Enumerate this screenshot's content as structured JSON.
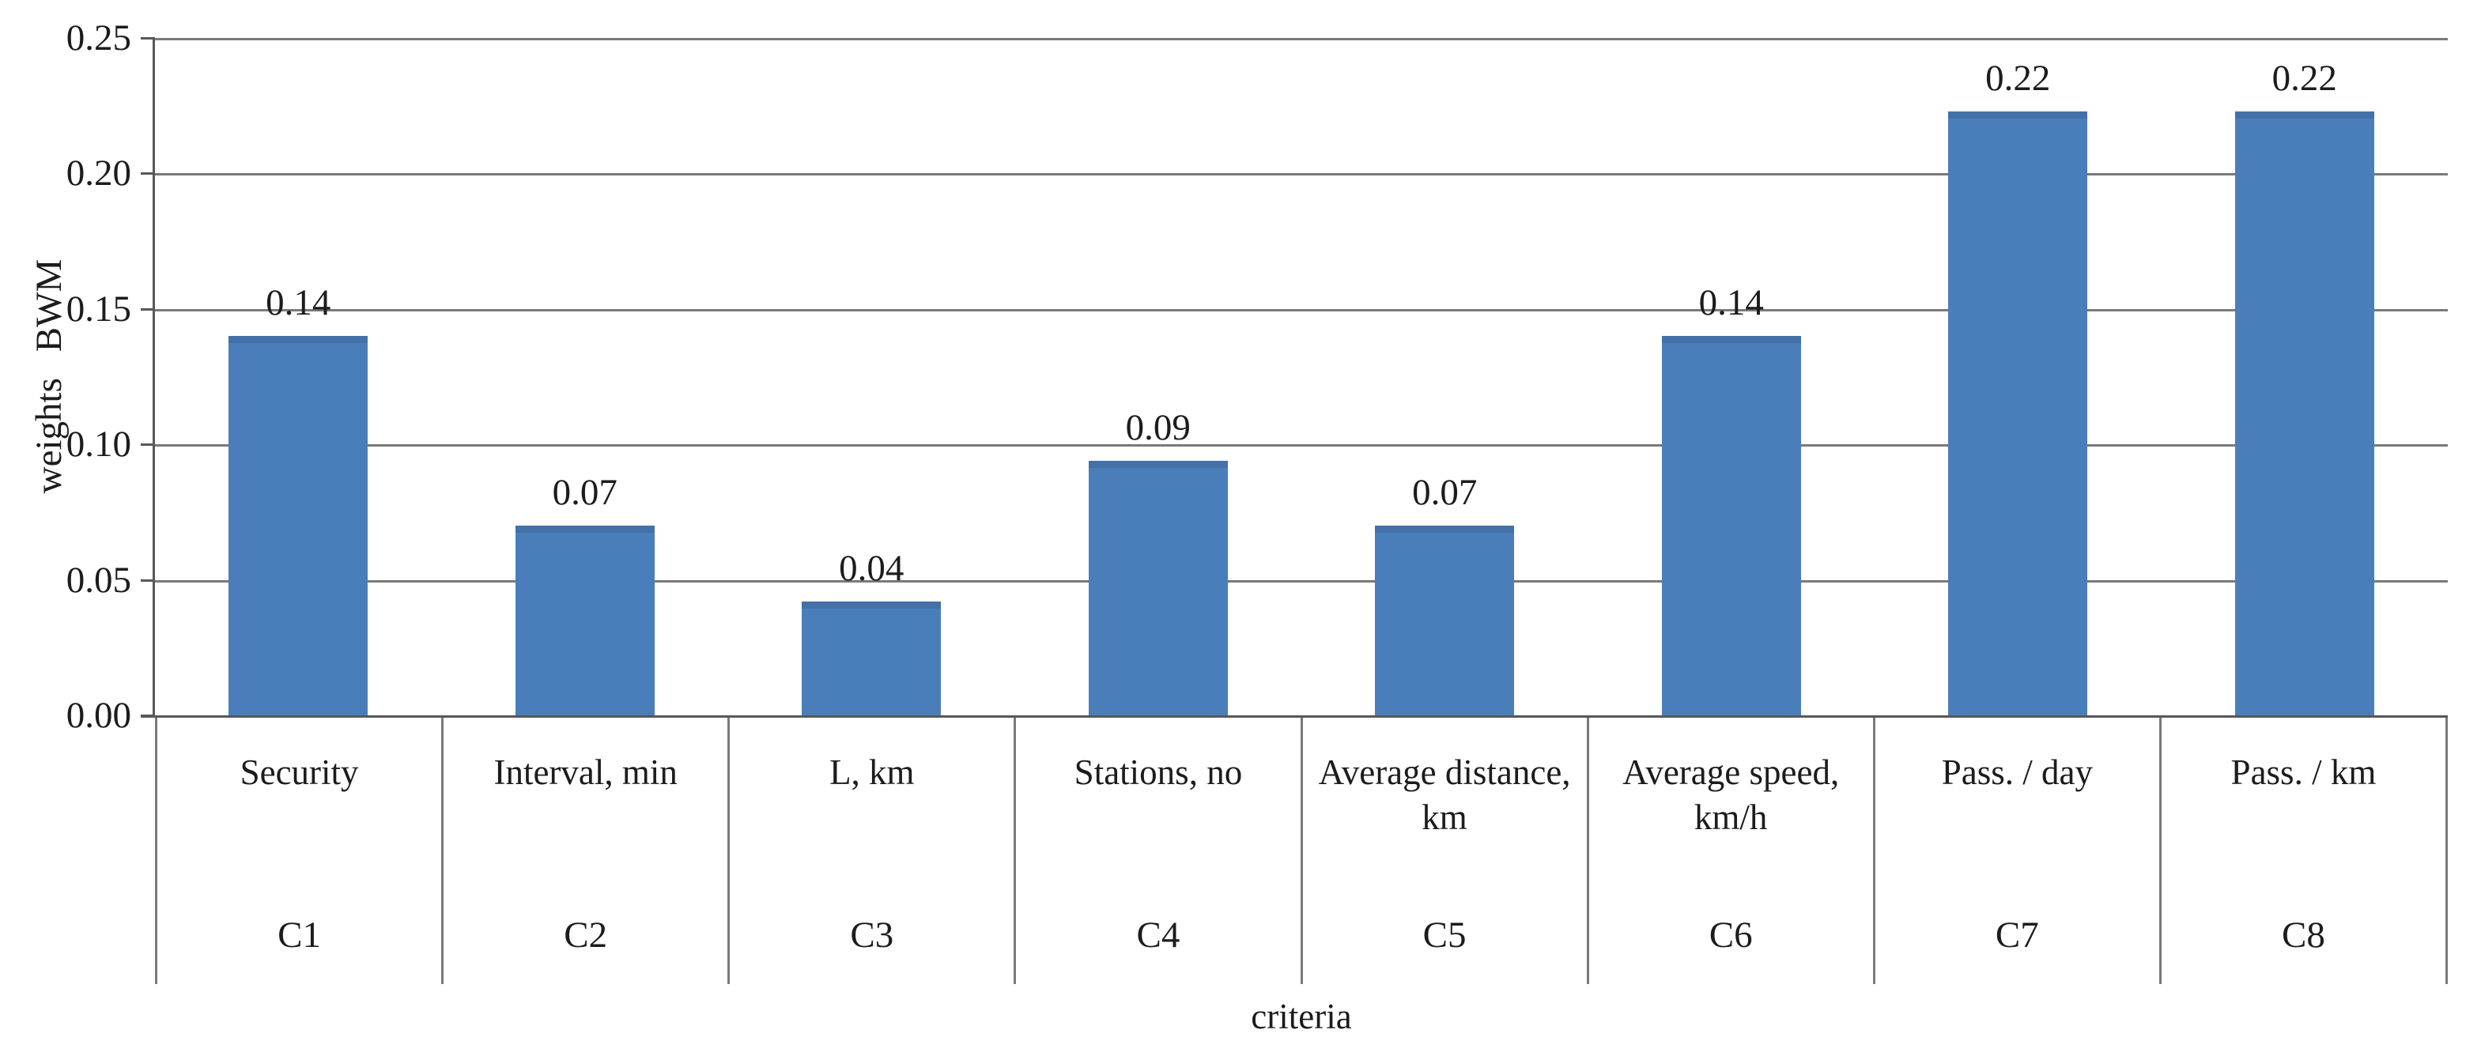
{
  "figure": {
    "background": "#ffffff"
  },
  "chart_data": {
    "type": "bar",
    "title": "",
    "xlabel": "criteria",
    "ylabel": "weights BWM",
    "categories": [
      "Security",
      "Interval, min",
      "L, km",
      "Stations, no",
      "Average distance, km",
      "Average speed, km/h",
      "Pass. / day",
      "Pass. / km"
    ],
    "category_codes": [
      "C1",
      "C2",
      "C3",
      "C4",
      "C5",
      "C6",
      "C7",
      "C8"
    ],
    "values": [
      0.14,
      0.07,
      0.04,
      0.09,
      0.07,
      0.14,
      0.22,
      0.22
    ],
    "bar_labels": [
      "0.14",
      "0.07",
      "0.04",
      "0.09",
      "0.07",
      "0.14",
      "0.22",
      "0.22"
    ],
    "values_drawn": [
      0.14,
      0.07,
      0.042,
      0.094,
      0.07,
      0.14,
      0.223,
      0.223
    ],
    "ylim": [
      0,
      0.25
    ],
    "ytick_step": 0.05,
    "yticks": [
      "0.25",
      "0.20",
      "0.15",
      "0.10",
      "0.05",
      "0.00"
    ],
    "grid": true,
    "legend_position": "none",
    "colors": {
      "bar": "#4A7EBB",
      "bar_top_edge": "#4371A8",
      "gridline": "#7a7a7a",
      "axis": "#585858",
      "text": "#1c1c1c"
    }
  }
}
